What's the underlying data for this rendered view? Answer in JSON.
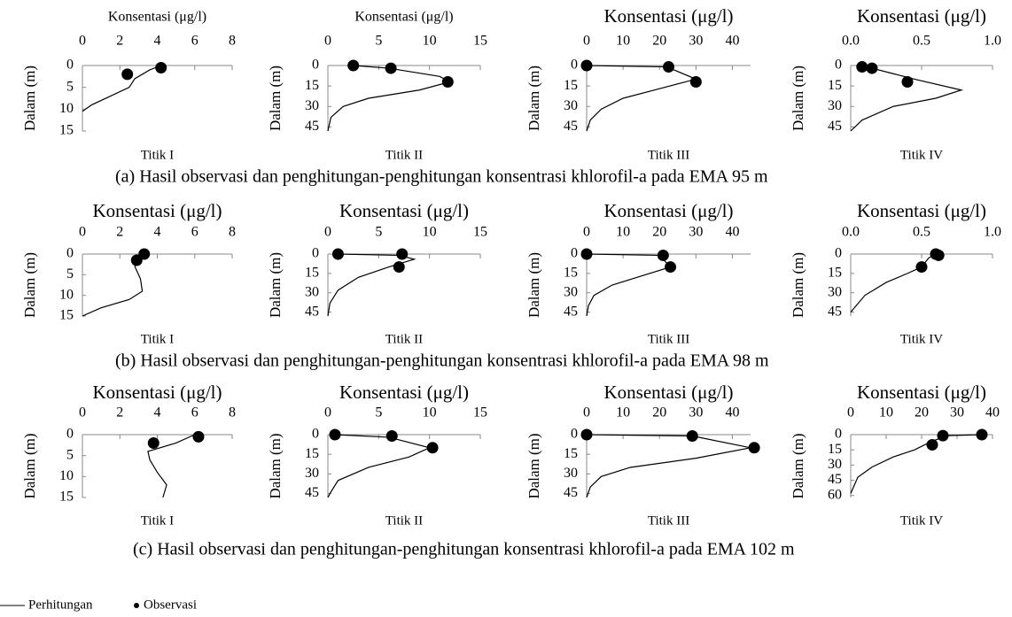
{
  "chart_data": [
    {
      "type": "line",
      "title": "Konsentasi (μg/l)",
      "ylabel": "Dalam (m)",
      "label": "Titik I",
      "xlim": [
        0,
        8
      ],
      "xticks": [
        0,
        2,
        4,
        6,
        8
      ],
      "ylim": [
        0,
        15
      ],
      "yticks": [
        0,
        5,
        10,
        15
      ],
      "series": [
        {
          "name": "Perhitungan",
          "style": "line",
          "color": "#000",
          "x": [
            4.2,
            3.6,
            2.8,
            2.5,
            1.5,
            0.5,
            0
          ],
          "values": [
            0,
            1,
            3,
            5,
            7,
            9,
            10.5
          ]
        },
        {
          "name": "Observasi",
          "style": "points",
          "color": "#000",
          "x": [
            4.2,
            2.4
          ],
          "values": [
            0.5,
            2
          ]
        }
      ]
    },
    {
      "type": "line",
      "title": "Konsentasi (μg/l)",
      "ylabel": "Dalam (m)",
      "label": "Titik II",
      "xlim": [
        0,
        15
      ],
      "xticks": [
        0,
        5,
        10,
        15
      ],
      "ylim": [
        0,
        48
      ],
      "yticks": [
        0,
        15,
        30,
        45
      ],
      "series": [
        {
          "name": "Perhitungan",
          "style": "line",
          "color": "#000",
          "x": [
            2.5,
            6,
            11,
            12,
            9,
            4,
            1.5,
            0.3,
            0
          ],
          "values": [
            0,
            2,
            8,
            12,
            18,
            24,
            30,
            38,
            48
          ]
        },
        {
          "name": "Observasi",
          "style": "points",
          "color": "#000",
          "x": [
            2.5,
            6.2,
            11.8
          ],
          "values": [
            0,
            2,
            12
          ]
        }
      ]
    },
    {
      "type": "line",
      "title": "Konsentasi (μg/l)",
      "ylabel": "Dalam (m)",
      "label": "Titik III",
      "xlim": [
        0,
        45
      ],
      "xticks": [
        0,
        10,
        20,
        30,
        40
      ],
      "ylim": [
        0,
        48
      ],
      "yticks": [
        0,
        15,
        30,
        45
      ],
      "series": [
        {
          "name": "Perhitungan",
          "style": "line",
          "color": "#000",
          "x": [
            0,
            22,
            30,
            20,
            10,
            4,
            1,
            0
          ],
          "values": [
            0,
            1,
            10,
            17,
            24,
            32,
            40,
            48
          ]
        },
        {
          "name": "Observasi",
          "style": "points",
          "color": "#000",
          "x": [
            0,
            22.5,
            30
          ],
          "values": [
            0,
            1,
            12
          ]
        }
      ]
    },
    {
      "type": "line",
      "title": "Konsentasi (μg/l)",
      "ylabel": "Dalam (m)",
      "label": "Titik IV",
      "xlim": [
        0,
        1
      ],
      "xticks": [
        {
          "value": 0,
          "label": "0.0"
        },
        {
          "value": 0.5,
          "label": "0.5"
        },
        {
          "value": 1,
          "label": "1.0"
        }
      ],
      "ylim": [
        0,
        48
      ],
      "yticks": [
        0,
        15,
        30,
        45
      ],
      "series": [
        {
          "name": "Perhitungan",
          "style": "line",
          "color": "#000",
          "x": [
            0.08,
            0.15,
            0.3,
            0.45,
            0.78,
            0.6,
            0.3,
            0.08,
            0
          ],
          "values": [
            0,
            2,
            6,
            10,
            18,
            24,
            30,
            40,
            48
          ]
        },
        {
          "name": "Observasi",
          "style": "points",
          "color": "#000",
          "x": [
            0.08,
            0.15,
            0.4
          ],
          "values": [
            1,
            2,
            12
          ]
        }
      ]
    },
    {
      "type": "line",
      "title": "Konsentasi (μg/l)",
      "ylabel": "Dalam (m)",
      "label": "Titik I",
      "xlim": [
        0,
        8
      ],
      "xticks": [
        0,
        2,
        4,
        6,
        8
      ],
      "ylim": [
        0,
        15
      ],
      "yticks": [
        0,
        5,
        10,
        15
      ],
      "series": [
        {
          "name": "Perhitungan",
          "style": "line",
          "color": "#000",
          "x": [
            3.2,
            3.0,
            2.8,
            3.1,
            3.2,
            2.5,
            1,
            0
          ],
          "values": [
            0,
            1,
            3,
            6,
            9,
            11,
            13,
            15
          ]
        },
        {
          "name": "Observasi",
          "style": "points",
          "color": "#000",
          "x": [
            3.3,
            2.9
          ],
          "values": [
            0,
            1.5
          ]
        }
      ]
    },
    {
      "type": "line",
      "title": "Konsentasi (μg/l)",
      "ylabel": "Dalam (m)",
      "label": "Titik II",
      "xlim": [
        0,
        15
      ],
      "xticks": [
        0,
        5,
        10,
        15
      ],
      "ylim": [
        0,
        48
      ],
      "yticks": [
        0,
        15,
        30,
        45
      ],
      "series": [
        {
          "name": "Perhitungan",
          "style": "line",
          "color": "#000",
          "x": [
            1,
            7,
            8.5,
            6,
            3,
            1,
            0.2,
            0
          ],
          "values": [
            0,
            1,
            4,
            10,
            18,
            28,
            38,
            48
          ]
        },
        {
          "name": "Observasi",
          "style": "points",
          "color": "#000",
          "x": [
            1,
            7.3,
            7
          ],
          "values": [
            0,
            0,
            10
          ]
        }
      ]
    },
    {
      "type": "line",
      "title": "Konsentasi (μg/l)",
      "ylabel": "Dalam (m)",
      "label": "Titik III",
      "xlim": [
        0,
        45
      ],
      "xticks": [
        0,
        10,
        20,
        30,
        40
      ],
      "ylim": [
        0,
        48
      ],
      "yticks": [
        0,
        15,
        30,
        45
      ],
      "series": [
        {
          "name": "Perhitungan",
          "style": "line",
          "color": "#000",
          "x": [
            0,
            20,
            23,
            15,
            7,
            2,
            0.5,
            0
          ],
          "values": [
            0,
            1,
            10,
            17,
            24,
            32,
            40,
            48
          ]
        },
        {
          "name": "Observasi",
          "style": "points",
          "color": "#000",
          "x": [
            0,
            21,
            23
          ],
          "values": [
            0,
            1,
            10
          ]
        }
      ]
    },
    {
      "type": "line",
      "title": "Konsentasi (μg/l)",
      "ylabel": "Dalam (m)",
      "label": "Titik IV",
      "xlim": [
        0,
        1
      ],
      "xticks": [
        {
          "value": 0,
          "label": "0.0"
        },
        {
          "value": 0.5,
          "label": "0.5"
        },
        {
          "value": 1,
          "label": "1.0"
        }
      ],
      "ylim": [
        0,
        48
      ],
      "yticks": [
        0,
        15,
        30,
        45
      ],
      "series": [
        {
          "name": "Perhitungan",
          "style": "line",
          "color": "#000",
          "x": [
            0.6,
            0.55,
            0.5,
            0.4,
            0.25,
            0.1,
            0
          ],
          "values": [
            0,
            3,
            10,
            15,
            22,
            32,
            45
          ]
        },
        {
          "name": "Observasi",
          "style": "points",
          "color": "#000",
          "x": [
            0.6,
            0.62,
            0.5
          ],
          "values": [
            0,
            1,
            10
          ]
        }
      ]
    },
    {
      "type": "line",
      "title": "Konsentasi (μg/l)",
      "ylabel": "Dalam (m)",
      "label": "Titik I",
      "xlim": [
        0,
        8
      ],
      "xticks": [
        0,
        2,
        4,
        6,
        8
      ],
      "ylim": [
        0,
        15
      ],
      "yticks": [
        0,
        5,
        10,
        15
      ],
      "series": [
        {
          "name": "Perhitungan",
          "style": "line",
          "color": "#000",
          "x": [
            6,
            5,
            3.5,
            3.6,
            4,
            4.5,
            4.3
          ],
          "values": [
            0,
            2,
            4,
            6,
            9,
            12,
            15
          ]
        },
        {
          "name": "Observasi",
          "style": "points",
          "color": "#000",
          "x": [
            6.2,
            3.8
          ],
          "values": [
            0.5,
            2
          ]
        }
      ]
    },
    {
      "type": "line",
      "title": "Konsentasi (μg/l)",
      "ylabel": "Dalam (m)",
      "label": "Titik II",
      "xlim": [
        0,
        15
      ],
      "xticks": [
        0,
        5,
        10,
        15
      ],
      "ylim": [
        0,
        48
      ],
      "yticks": [
        0,
        15,
        30,
        45
      ],
      "series": [
        {
          "name": "Perhitungan",
          "style": "line",
          "color": "#000",
          "x": [
            0.7,
            6,
            10,
            8,
            4,
            1,
            0.2,
            0
          ],
          "values": [
            0,
            2,
            10,
            17,
            25,
            35,
            45,
            48
          ]
        },
        {
          "name": "Observasi",
          "style": "points",
          "color": "#000",
          "x": [
            0.7,
            6.3,
            10.3
          ],
          "values": [
            0,
            1,
            10
          ]
        }
      ]
    },
    {
      "type": "line",
      "title": "Konsentasi (μg/l)",
      "ylabel": "Dalam (m)",
      "label": "Titik III",
      "xlim": [
        0,
        45
      ],
      "xticks": [
        0,
        10,
        20,
        30,
        40
      ],
      "ylim": [
        0,
        48
      ],
      "yticks": [
        0,
        15,
        30,
        45
      ],
      "series": [
        {
          "name": "Perhitungan",
          "style": "line",
          "color": "#000",
          "x": [
            0,
            29,
            45,
            30,
            12,
            4,
            1,
            0
          ],
          "values": [
            0,
            1,
            10,
            18,
            25,
            32,
            40,
            48
          ]
        },
        {
          "name": "Observasi",
          "style": "points",
          "color": "#000",
          "x": [
            0,
            29,
            46
          ],
          "values": [
            0,
            1,
            10
          ]
        }
      ]
    },
    {
      "type": "line",
      "title": "Konsentasi (μg/l)",
      "ylabel": "Dalam (m)",
      "label": "Titik IV",
      "xlim": [
        0,
        40
      ],
      "xticks": [
        0,
        10,
        20,
        30,
        40
      ],
      "ylim": [
        0,
        62
      ],
      "yticks": [
        0,
        15,
        30,
        45,
        60
      ],
      "series": [
        {
          "name": "Perhitungan",
          "style": "line",
          "color": "#000",
          "x": [
            37,
            27,
            22,
            18,
            12,
            6,
            2,
            0
          ],
          "values": [
            0,
            1,
            8,
            15,
            22,
            32,
            42,
            58
          ]
        },
        {
          "name": "Observasi",
          "style": "points",
          "color": "#000",
          "x": [
            37,
            26,
            23
          ],
          "values": [
            0,
            1,
            10
          ]
        }
      ]
    }
  ],
  "captions": [
    "(a)   Hasil observasi dan penghitungan-penghitungan konsentrasi khlorofil-a pada EMA 95 m",
    "(b)   Hasil observasi dan penghitungan-penghitungan konsentrasi khlorofil-a pada EMA 98 m",
    "(c)   Hasil observasi dan penghitungan-penghitungan konsentrasi khlorofil-a pada EMA 102 m"
  ]
}
